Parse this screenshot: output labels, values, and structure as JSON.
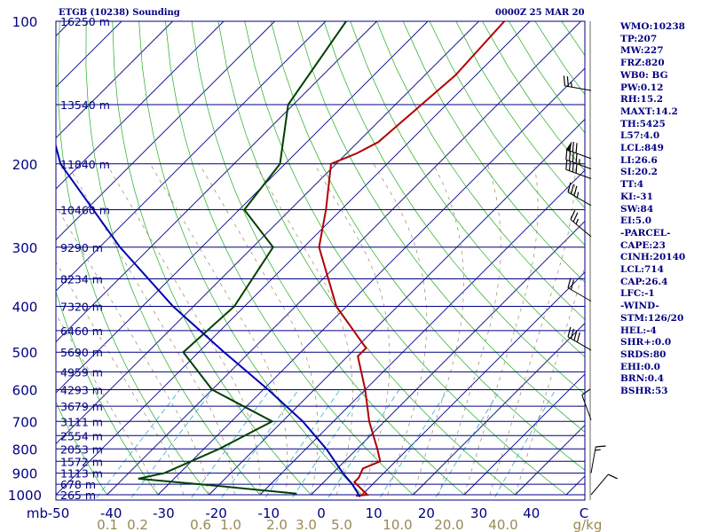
{
  "header": {
    "title": "ETGB (10238) Sounding",
    "time": "0000Z 25 MAR 20"
  },
  "chart_data": {
    "type": "line",
    "title": "ETGB (10238) Sounding",
    "ylabel": "mb",
    "xlabel": "",
    "xlim": [
      -50,
      60
    ],
    "ylim": [
      1000,
      100
    ],
    "pressure_levels": [
      100,
      200,
      300,
      400,
      500,
      600,
      700,
      800,
      900,
      1000
    ],
    "temperature_ticks": [
      "-50",
      "-40",
      "-30",
      "-20",
      "-10",
      "0",
      "10",
      "20",
      "30",
      "40",
      "C"
    ],
    "mixing_ratio_ticks": [
      "0.1",
      "0.2",
      "0.6",
      "1.0",
      "2.0",
      "3.0",
      "5.0",
      "10.0",
      "20.0",
      "40.0",
      "g/kg"
    ],
    "height_labels": [
      {
        "p": 100,
        "label": "16250 m"
      },
      {
        "p": 150,
        "label": "13540 m"
      },
      {
        "p": 200,
        "label": "11840 m"
      },
      {
        "p": 250,
        "label": "10460 m"
      },
      {
        "p": 300,
        "label": "9290 m"
      },
      {
        "p": 350,
        "label": "8234 m"
      },
      {
        "p": 400,
        "label": "7320 m"
      },
      {
        "p": 450,
        "label": "6460 m"
      },
      {
        "p": 500,
        "label": "5690 m"
      },
      {
        "p": 550,
        "label": "4959 m"
      },
      {
        "p": 600,
        "label": "4293 m"
      },
      {
        "p": 650,
        "label": "3679 m"
      },
      {
        "p": 700,
        "label": "3111 m"
      },
      {
        "p": 750,
        "label": "2554 m"
      },
      {
        "p": 800,
        "label": "2053 m"
      },
      {
        "p": 850,
        "label": "1572 m"
      },
      {
        "p": 900,
        "label": "1113 m"
      },
      {
        "p": 950,
        "label": "678 m"
      },
      {
        "p": 1000,
        "label": "265 m"
      }
    ],
    "series": [
      {
        "color": "#b00000",
        "points": [
          {
            "p": 100,
            "t": -55
          },
          {
            "p": 130,
            "t": -54
          },
          {
            "p": 180,
            "t": -56
          },
          {
            "p": 190,
            "t": -58
          },
          {
            "p": 200,
            "t": -61
          },
          {
            "p": 250,
            "t": -53
          },
          {
            "p": 300,
            "t": -47
          },
          {
            "p": 400,
            "t": -32
          },
          {
            "p": 490,
            "t": -18
          },
          {
            "p": 510,
            "t": -18
          },
          {
            "p": 600,
            "t": -10
          },
          {
            "p": 700,
            "t": -3
          },
          {
            "p": 800,
            "t": 4
          },
          {
            "p": 850,
            "t": 7
          },
          {
            "p": 880,
            "t": 5
          },
          {
            "p": 920,
            "t": 6
          },
          {
            "p": 940,
            "t": 6
          },
          {
            "p": 1000,
            "t": 11
          },
          {
            "p": 1005,
            "t": 9
          }
        ]
      },
      {
        "color": "#004000",
        "points": [
          {
            "p": 100,
            "t": -86
          },
          {
            "p": 150,
            "t": -81
          },
          {
            "p": 200,
            "t": -71
          },
          {
            "p": 250,
            "t": -69
          },
          {
            "p": 300,
            "t": -56
          },
          {
            "p": 400,
            "t": -52
          },
          {
            "p": 500,
            "t": -53
          },
          {
            "p": 600,
            "t": -40
          },
          {
            "p": 700,
            "t": -22
          },
          {
            "p": 800,
            "t": -27
          },
          {
            "p": 900,
            "t": -33
          },
          {
            "p": 925,
            "t": -37
          },
          {
            "p": 960,
            "t": -19
          },
          {
            "p": 995,
            "t": -3
          }
        ]
      },
      {
        "color": "#0000b0",
        "points": [
          {
            "p": 1010,
            "t": 10
          },
          {
            "p": 950,
            "t": 6
          },
          {
            "p": 900,
            "t": 2
          },
          {
            "p": 800,
            "t": -6
          },
          {
            "p": 700,
            "t": -16
          },
          {
            "p": 600,
            "t": -29
          },
          {
            "p": 500,
            "t": -45
          },
          {
            "p": 400,
            "t": -64
          },
          {
            "p": 300,
            "t": -86
          },
          {
            "p": 200,
            "t": -114
          },
          {
            "p": 130,
            "t": -136
          }
        ]
      }
    ],
    "wind_barbs": [
      {
        "p": 140,
        "dir": 280,
        "spd": 25
      },
      {
        "p": 195,
        "dir": 290,
        "spd": 70
      },
      {
        "p": 205,
        "dir": 290,
        "spd": 45
      },
      {
        "p": 215,
        "dir": 290,
        "spd": 40
      },
      {
        "p": 245,
        "dir": 300,
        "spd": 35
      },
      {
        "p": 285,
        "dir": 310,
        "spd": 25
      },
      {
        "p": 390,
        "dir": 300,
        "spd": 20
      },
      {
        "p": 495,
        "dir": 300,
        "spd": 40
      },
      {
        "p": 695,
        "dir": 340,
        "spd": 10
      },
      {
        "p": 900,
        "dir": 10,
        "spd": 15
      },
      {
        "p": 1000,
        "dir": 40,
        "spd": 10
      }
    ]
  },
  "indices": [
    "WMO:10238",
    "TP:207",
    "MW:227",
    "FRZ:820",
    "WB0: BG",
    "PW:0.12",
    "RH:15.2",
    "MAXT:14.2",
    "TH:5425",
    "L57:4.0",
    "LCL:849",
    "LI:26.6",
    "SI:20.2",
    "TT:4",
    "KI:-31",
    "SW:84",
    "EI:5.0",
    "-PARCEL-",
    "CAPE:23",
    "CINH:20140",
    "LCL:714",
    "CAP:26.4",
    "LFC:-1",
    "-WIND-",
    "STM:126/20",
    "HEL:-4",
    "SHR+:0.0",
    "SRDS:80",
    "EHI:0.0",
    "BRN:0.4",
    "BSHR:53"
  ]
}
